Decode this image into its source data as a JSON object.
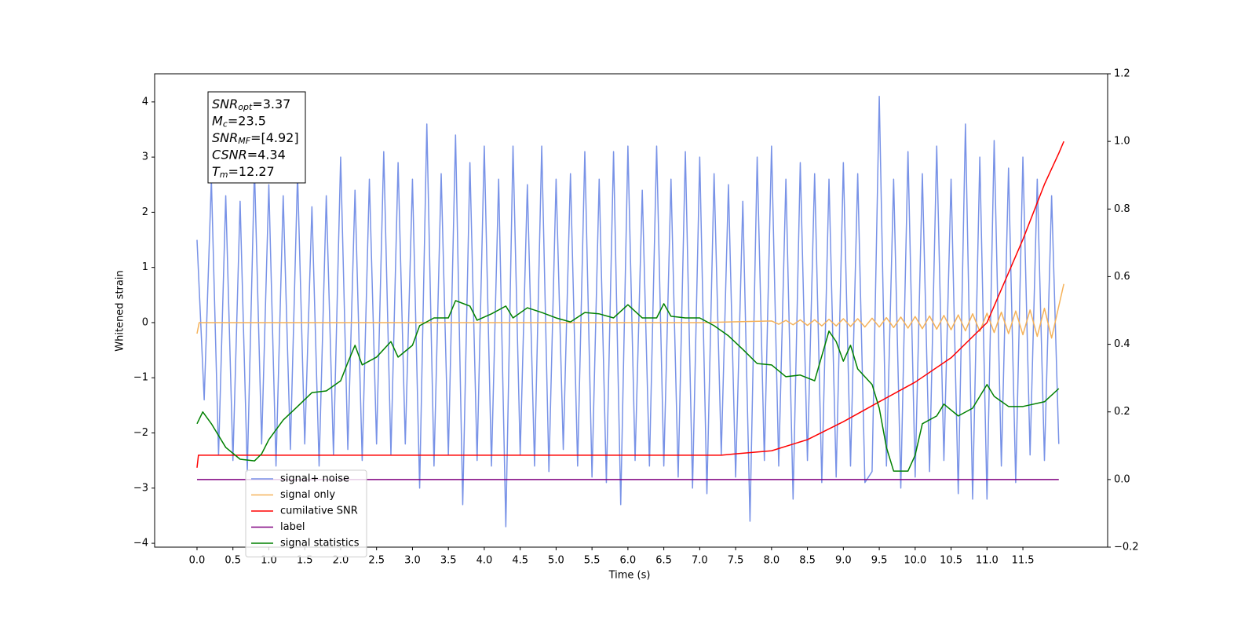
{
  "chart_data": {
    "type": "line",
    "xlabel": "Time (s)",
    "ylabel": "Whitened strain",
    "xlim": [
      -0.59,
      12.68
    ],
    "ylim": [
      -4.07,
      4.51
    ],
    "y2lim": [
      -0.2,
      1.2
    ],
    "xticks": [
      {
        "value": 0,
        "label": "0.0"
      },
      0.5,
      {
        "value": 1,
        "label": "1.0"
      },
      1.5,
      {
        "value": 2,
        "label": "2.0"
      },
      2.5,
      {
        "value": 3,
        "label": "3.0"
      },
      3.5,
      {
        "value": 4,
        "label": "4.0"
      },
      4.5,
      {
        "value": 5,
        "label": "5.0"
      },
      5.5,
      {
        "value": 6,
        "label": "6.0"
      },
      6.5,
      {
        "value": 7,
        "label": "7.0"
      },
      7.5,
      {
        "value": 8,
        "label": "8.0"
      },
      8.5,
      {
        "value": 9,
        "label": "9.0"
      },
      9.5,
      {
        "value": 10,
        "label": "10.0"
      },
      10.5,
      {
        "value": 11,
        "label": "11.0"
      },
      11.5
    ],
    "yticks": [
      {
        "value": -4,
        "label": "−4"
      },
      {
        "value": -3,
        "label": "−3"
      },
      {
        "value": -2,
        "label": "−2"
      },
      {
        "value": -1,
        "label": "−1"
      },
      0,
      1,
      2,
      3,
      4
    ],
    "y2ticks": [
      {
        "value": -0.2,
        "label": "−0.2"
      },
      {
        "value": 0,
        "label": "0.0"
      },
      0.2,
      0.4,
      0.6,
      0.8,
      {
        "value": 1,
        "label": "1.0"
      },
      1.2
    ],
    "annotations": [
      {
        "symbol": "SNR",
        "sub": "opt",
        "text": "=3.37"
      },
      {
        "symbol": "M",
        "sub": "c",
        "text": "=23.5"
      },
      {
        "symbol": "SNR",
        "sub": "MF",
        "text": "=[4.92]"
      },
      {
        "symbol": "CSNR",
        "text": "=4.34"
      },
      {
        "symbol": "T",
        "sub": "m",
        "text": "=12.27"
      }
    ],
    "series": [
      {
        "name": "signal+ noise",
        "color": "#7892e7",
        "x": [
          0,
          0.1,
          0.2,
          0.3,
          0.4,
          0.5,
          0.6,
          0.7,
          0.8,
          0.9,
          1,
          1.1,
          1.2,
          1.3,
          1.4,
          1.5,
          1.6,
          1.7,
          1.8,
          1.9,
          2,
          2.1,
          2.2,
          2.3,
          2.4,
          2.5,
          2.6,
          2.7,
          2.8,
          2.9,
          3,
          3.1,
          3.2,
          3.3,
          3.4,
          3.5,
          3.6,
          3.7,
          3.8,
          3.9,
          4,
          4.1,
          4.2,
          4.3,
          4.4,
          4.5,
          4.6,
          4.7,
          4.8,
          4.9,
          5,
          5.1,
          5.2,
          5.3,
          5.4,
          5.5,
          5.6,
          5.7,
          5.8,
          5.9,
          6,
          6.1,
          6.2,
          6.3,
          6.4,
          6.5,
          6.6,
          6.7,
          6.8,
          6.9,
          7,
          7.1,
          7.2,
          7.3,
          7.4,
          7.5,
          7.6,
          7.7,
          7.8,
          7.9,
          8,
          8.1,
          8.2,
          8.3,
          8.4,
          8.5,
          8.6,
          8.7,
          8.8,
          8.9,
          9,
          9.1,
          9.2,
          9.3,
          9.4,
          9.5,
          9.6,
          9.7,
          9.8,
          9.9,
          10,
          10.1,
          10.2,
          10.3,
          10.4,
          10.5,
          10.6,
          10.7,
          10.8,
          10.9,
          11,
          11.1,
          11.2,
          11.3,
          11.4,
          11.5,
          11.6,
          11.7,
          11.8,
          11.9,
          12
        ],
        "values": [
          1.5,
          -1.4,
          2.6,
          -2.4,
          2.3,
          -2.5,
          2.2,
          -2.7,
          2.8,
          -2.2,
          2.5,
          -2.6,
          2.3,
          -2.3,
          2.7,
          -2.2,
          2.1,
          -2.6,
          2.3,
          -2.4,
          3.0,
          -2.3,
          2.4,
          -2.5,
          2.6,
          -2.2,
          3.1,
          -2.4,
          2.9,
          -2.2,
          2.6,
          -3.0,
          3.6,
          -2.6,
          2.7,
          -2.4,
          3.4,
          -3.3,
          2.9,
          -2.5,
          3.2,
          -2.6,
          2.6,
          -3.7,
          3.2,
          -2.4,
          2.5,
          -2.6,
          3.2,
          -2.7,
          2.6,
          -2.3,
          2.7,
          -2.6,
          3.1,
          -2.8,
          2.6,
          -2.9,
          3.1,
          -3.3,
          3.2,
          -2.5,
          2.4,
          -2.6,
          3.2,
          -2.6,
          2.6,
          -2.8,
          3.1,
          -3.0,
          3.0,
          -3.1,
          2.7,
          -2.4,
          2.5,
          -2.8,
          2.2,
          -3.6,
          3.0,
          -2.5,
          3.2,
          -2.6,
          2.6,
          -3.2,
          2.9,
          -2.5,
          2.7,
          -2.9,
          2.6,
          -2.8,
          2.9,
          -2.6,
          2.7,
          -2.9,
          -2.7,
          4.1,
          -2.6,
          2.6,
          -3.0,
          3.1,
          -2.8,
          2.7,
          -2.7,
          3.2,
          -2.5,
          2.6,
          -3.1,
          3.6,
          -3.2,
          3.0,
          -3.2,
          3.3,
          -2.6,
          2.8,
          -2.9,
          3.0,
          -2.4,
          2.6,
          -2.5,
          2.3,
          -2.2
        ]
      },
      {
        "name": "signal only",
        "color": "#f5b25a",
        "x": [
          0,
          0.03,
          7,
          8,
          8.1,
          8.2,
          8.3,
          8.4,
          8.5,
          8.6,
          8.7,
          8.8,
          8.9,
          9,
          9.1,
          9.2,
          9.3,
          9.4,
          9.5,
          9.6,
          9.7,
          9.8,
          9.9,
          10,
          10.1,
          10.2,
          10.3,
          10.4,
          10.5,
          10.6,
          10.7,
          10.8,
          10.9,
          11,
          11.1,
          11.2,
          11.3,
          11.4,
          11.5,
          11.6,
          11.7,
          11.8,
          11.9,
          12,
          12.07
        ],
        "values": [
          -0.2,
          0,
          0,
          0.03,
          -0.03,
          0.04,
          -0.04,
          0.05,
          -0.05,
          0.05,
          -0.06,
          0.06,
          -0.06,
          0.07,
          -0.07,
          0.07,
          -0.08,
          0.08,
          -0.08,
          0.09,
          -0.09,
          0.1,
          -0.1,
          0.11,
          -0.11,
          0.12,
          -0.12,
          0.13,
          -0.13,
          0.14,
          -0.15,
          0.16,
          -0.16,
          0.17,
          -0.18,
          0.19,
          -0.2,
          0.21,
          -0.22,
          0.23,
          -0.25,
          0.26,
          -0.28,
          0.3,
          0.7
        ]
      },
      {
        "name": "cumilative SNR",
        "color": "#ff0000",
        "axis": "y2",
        "x": [
          0,
          0.02,
          7.3,
          7.5,
          8,
          8.5,
          9,
          9.5,
          10,
          10.5,
          11,
          11.5,
          11.8,
          12,
          12.07
        ],
        "values": [
          0.035,
          0.072,
          0.072,
          0.076,
          0.085,
          0.118,
          0.171,
          0.23,
          0.288,
          0.36,
          0.464,
          0.71,
          0.873,
          0.965,
          1.0
        ]
      },
      {
        "name": "label",
        "color": "#800080",
        "axis": "y2",
        "x": [
          0,
          12
        ],
        "values": [
          0,
          0
        ]
      },
      {
        "name": "signal statistics",
        "color": "#008000",
        "axis": "y2",
        "x": [
          0,
          0.08,
          0.2,
          0.4,
          0.6,
          0.8,
          0.9,
          1,
          1.2,
          1.4,
          1.6,
          1.8,
          2,
          2.1,
          2.2,
          2.3,
          2.5,
          2.7,
          2.8,
          3,
          3.1,
          3.3,
          3.5,
          3.6,
          3.8,
          3.9,
          4.1,
          4.3,
          4.4,
          4.6,
          4.8,
          5,
          5.2,
          5.4,
          5.6,
          5.8,
          6,
          6.2,
          6.4,
          6.5,
          6.6,
          6.8,
          7,
          7.2,
          7.4,
          7.6,
          7.8,
          8,
          8.2,
          8.4,
          8.6,
          8.8,
          8.9,
          9,
          9.1,
          9.2,
          9.4,
          9.5,
          9.6,
          9.7,
          9.9,
          10,
          10.1,
          10.3,
          10.4,
          10.6,
          10.8,
          11,
          11.1,
          11.3,
          11.5,
          11.8,
          12
        ],
        "values": [
          0.165,
          0.2,
          0.165,
          0.095,
          0.06,
          0.055,
          0.076,
          0.118,
          0.176,
          0.216,
          0.257,
          0.262,
          0.292,
          0.346,
          0.397,
          0.339,
          0.362,
          0.408,
          0.362,
          0.397,
          0.455,
          0.478,
          0.478,
          0.529,
          0.513,
          0.471,
          0.49,
          0.513,
          0.478,
          0.508,
          0.494,
          0.478,
          0.466,
          0.494,
          0.49,
          0.478,
          0.517,
          0.478,
          0.478,
          0.52,
          0.483,
          0.478,
          0.478,
          0.455,
          0.425,
          0.385,
          0.343,
          0.339,
          0.304,
          0.309,
          0.292,
          0.439,
          0.408,
          0.35,
          0.397,
          0.327,
          0.281,
          0.211,
          0.095,
          0.025,
          0.025,
          0.072,
          0.165,
          0.188,
          0.223,
          0.188,
          0.211,
          0.281,
          0.246,
          0.216,
          0.216,
          0.23,
          0.269
        ]
      }
    ]
  }
}
